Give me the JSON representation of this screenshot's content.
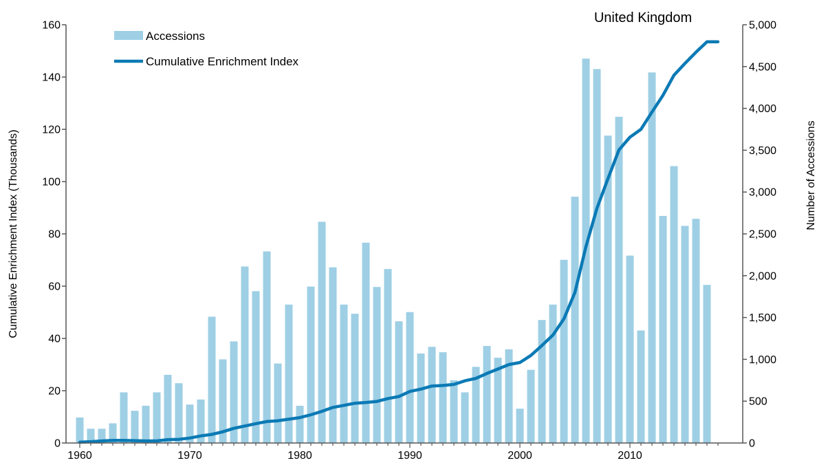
{
  "chart_data": {
    "type": "bar+line",
    "title": "United Kingdom",
    "y_left_label": "Cumulative Enrichment Index (Thousands)",
    "y_right_label": "Number of Accessions",
    "y_left_lim": [
      0,
      160
    ],
    "y_right_lim": [
      0,
      5000
    ],
    "y_left_ticks": [
      0,
      20,
      40,
      60,
      80,
      100,
      120,
      140,
      160
    ],
    "y_right_ticks": [
      0,
      500,
      1000,
      1500,
      2000,
      2500,
      3000,
      3500,
      4000,
      4500,
      5000
    ],
    "y_left_tick_labels": [
      "0",
      "20",
      "40",
      "60",
      "80",
      "100",
      "120",
      "140",
      "160"
    ],
    "y_right_tick_labels": [
      "0",
      "500",
      "1,000",
      "1,500",
      "2,000",
      "2,500",
      "3,000",
      "3,500",
      "4,000",
      "4,500",
      "5,000"
    ],
    "x_lim": [
      1960,
      2018
    ],
    "x_ticks": [
      1960,
      1970,
      1980,
      1990,
      2000,
      2010
    ],
    "x_tick_labels": [
      "1960",
      "1970",
      "1980",
      "1990",
      "2000",
      "2010"
    ],
    "legend": {
      "placement": "top-left",
      "bar_label": "Accessions",
      "line_label": "Cumulative Enrichment Index"
    },
    "colors": {
      "bar": "#9ecfe5",
      "line": "#0b7ab5",
      "axis": "#555555"
    },
    "bars": {
      "name": "Accessions",
      "axis": "right",
      "years": [
        1960,
        1961,
        1962,
        1963,
        1964,
        1965,
        1966,
        1967,
        1968,
        1969,
        1970,
        1971,
        1972,
        1973,
        1974,
        1975,
        1976,
        1977,
        1978,
        1979,
        1980,
        1981,
        1982,
        1983,
        1984,
        1985,
        1986,
        1987,
        1988,
        1989,
        1990,
        1991,
        1992,
        1993,
        1994,
        1995,
        1996,
        1997,
        1998,
        1999,
        2000,
        2001,
        2002,
        2003,
        2004,
        2005,
        2006,
        2007,
        2008,
        2009,
        2010,
        2011,
        2012,
        2013,
        2014,
        2015,
        2016,
        2017
      ],
      "values": [
        305,
        170,
        170,
        235,
        605,
        385,
        445,
        605,
        815,
        715,
        460,
        520,
        1510,
        1000,
        1215,
        2110,
        1815,
        2290,
        950,
        1655,
        445,
        1870,
        2645,
        2100,
        1655,
        1545,
        2395,
        1865,
        2080,
        1455,
        1565,
        1070,
        1150,
        1085,
        750,
        605,
        910,
        1160,
        1020,
        1120,
        410,
        875,
        1470,
        1655,
        2190,
        2945,
        4595,
        4470,
        3675,
        3900,
        2240,
        1345,
        4430,
        2715,
        3310,
        2595,
        2680,
        1890
      ]
    },
    "line": {
      "name": "Cumulative Enrichment Index",
      "axis": "left",
      "x": [
        1960,
        1961,
        1962,
        1963,
        1964,
        1965,
        1966,
        1967,
        1968,
        1969,
        1970,
        1971,
        1972,
        1973,
        1974,
        1975,
        1976,
        1977,
        1978,
        1979,
        1980,
        1981,
        1982,
        1983,
        1984,
        1985,
        1986,
        1987,
        1988,
        1989,
        1990,
        1991,
        1992,
        1993,
        1994,
        1995,
        1996,
        1997,
        1998,
        1999,
        2000,
        2001,
        2002,
        2003,
        2004,
        2005,
        2006,
        2007,
        2008,
        2009,
        2010,
        2011,
        2012,
        2013,
        2014,
        2015,
        2016,
        2017,
        2018
      ],
      "y": [
        0.3,
        0.5,
        0.8,
        1.0,
        1.0,
        0.9,
        0.8,
        0.8,
        1.3,
        1.4,
        1.9,
        2.7,
        3.3,
        4.3,
        5.6,
        6.5,
        7.4,
        8.2,
        8.5,
        9.1,
        9.7,
        10.8,
        12.1,
        13.6,
        14.4,
        15.2,
        15.5,
        15.9,
        17.0,
        17.8,
        19.7,
        20.6,
        21.8,
        22.0,
        22.4,
        23.8,
        24.7,
        26.6,
        28.3,
        30.0,
        30.8,
        33.5,
        37.3,
        41.3,
        47.5,
        57.6,
        75.1,
        89.8,
        101.1,
        112.1,
        117.0,
        120.0,
        126.6,
        133.0,
        140.7,
        145.2,
        149.5,
        153.5,
        153.5
      ]
    }
  }
}
